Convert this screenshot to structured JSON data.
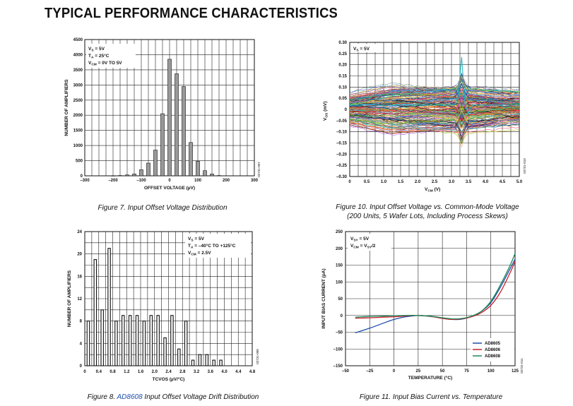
{
  "header": {
    "title": "TYPICAL PERFORMANCE CHARACTERISTICS"
  },
  "captions": {
    "fig7": "Figure 7. Input Offset Voltage Distribution",
    "fig10_line1": "Figure 10. Input Offset Voltage vs. Common-Mode Voltage",
    "fig10_line2": "(200 Units, 5 Wafer Lots, Including Process Skews)",
    "fig8_prefix": "Figure 8. ",
    "fig8_link": "AD8608",
    "fig8_suffix": " Input Offset Voltage Drift Distribution",
    "fig11": "Figure 11. Input Bias Current vs. Temperature"
  },
  "chart_data": [
    {
      "id": "fig7",
      "type": "bar",
      "xlabel": "OFFSET VOLTAGE (µV)",
      "ylabel": "NUMBER OF AMPLIFIERS",
      "xlim": [
        -300,
        300
      ],
      "ylim": [
        0,
        4500
      ],
      "xticks": [
        -300,
        -200,
        -100,
        0,
        100,
        200,
        300
      ],
      "yticks": [
        0,
        500,
        1000,
        1500,
        2000,
        2500,
        3000,
        3500,
        4000,
        4500
      ],
      "grid": true,
      "annotations": [
        [
          "V",
          "S",
          " = 5V"
        ],
        [
          "T",
          "A",
          " = 25°C"
        ],
        [
          "V",
          "CM",
          " = 0V TO 5V"
        ]
      ],
      "code": "02731-007",
      "x": [
        -200,
        -175,
        -150,
        -125,
        -100,
        -75,
        -50,
        -25,
        0,
        25,
        50,
        75,
        100,
        125,
        150,
        175
      ],
      "values": [
        5,
        10,
        30,
        60,
        200,
        420,
        850,
        2050,
        3850,
        3370,
        2950,
        1100,
        480,
        170,
        60,
        10
      ]
    },
    {
      "id": "fig10",
      "type": "line",
      "xlabel": "VCM (V)",
      "xlabel_parts": [
        "V",
        "CM",
        " (V)"
      ],
      "ylabel": "VOS (mV)",
      "ylabel_parts": [
        "V",
        "OS",
        " (mV)"
      ],
      "xlim": [
        0,
        5
      ],
      "ylim": [
        -0.3,
        0.3
      ],
      "xticks": [
        "0",
        "0.5",
        "1.0",
        "1.5",
        "2.0",
        "2.5",
        "3.0",
        "3.5",
        "4.0",
        "4.5",
        "5.0"
      ],
      "yticks": [
        "0.30",
        "0.25",
        "0.20",
        "0.15",
        "0.10",
        "0.05",
        "0",
        "–0.05",
        "–0.10",
        "–0.15",
        "–0.20",
        "–0.25",
        "–0.30"
      ],
      "grid": true,
      "annotations": [
        [
          "V",
          "S",
          " = 5V"
        ]
      ],
      "code": "02731-010",
      "series_count": 200,
      "note": "200 traces; offset mostly within ±0.15 mV, crossing point near VCM ≈ 3.3 V with spikes to about +0.24 mV"
    },
    {
      "id": "fig8",
      "type": "bar",
      "xlabel": "TCVOS (µV/°C)",
      "ylabel": "NUMBER OF AMPLIFIERS",
      "xlim": [
        0,
        4.8
      ],
      "ylim": [
        0,
        24
      ],
      "xticks": [
        "0",
        "0.4",
        "0.8",
        "1.2",
        "1.6",
        "2.0",
        "2.4",
        "2.8",
        "3.2",
        "3.6",
        "4.0",
        "4.4",
        "4.8"
      ],
      "yticks": [
        0,
        4,
        8,
        12,
        16,
        20,
        24
      ],
      "grid": true,
      "annotations": [
        [
          "V",
          "S",
          " = 5V"
        ],
        [
          "T",
          "A",
          " = –40°C TO +125°C"
        ],
        [
          "V",
          "CM",
          " = 2.5V"
        ]
      ],
      "code": "02731-008",
      "x": [
        0.1,
        0.3,
        0.5,
        0.7,
        0.9,
        1.1,
        1.3,
        1.5,
        1.7,
        1.9,
        2.1,
        2.3,
        2.5,
        2.7,
        2.9,
        3.1,
        3.3,
        3.5,
        3.7,
        3.9
      ],
      "values": [
        8,
        19,
        10,
        21,
        8,
        9,
        9,
        9,
        8,
        9,
        9,
        5,
        9,
        3,
        8,
        1,
        2,
        2,
        1,
        1
      ]
    },
    {
      "id": "fig11",
      "type": "line",
      "xlabel": "TEMPERATURE (°C)",
      "ylabel": "INPUT BIAS CURRENT (pA)",
      "xlim": [
        -50,
        125
      ],
      "ylim": [
        -150,
        250
      ],
      "xticks": [
        -50,
        -25,
        0,
        25,
        50,
        75,
        100,
        125
      ],
      "yticks": [
        -150,
        -100,
        -50,
        0,
        50,
        100,
        150,
        200,
        250
      ],
      "grid": true,
      "legend": "bottom-right",
      "annotations": [
        [
          "V",
          "SY",
          " = 5V"
        ],
        [
          "V",
          "CM",
          " = V",
          "SY",
          "/2"
        ]
      ],
      "code": "02731-011",
      "series": [
        {
          "name": "AD8605",
          "color": "#1f4ea8",
          "x": [
            -40,
            -25,
            -10,
            0,
            10,
            25,
            40,
            50,
            60,
            70,
            80,
            90,
            100,
            110,
            120,
            125
          ],
          "values": [
            -52,
            -38,
            -22,
            -12,
            -5,
            0,
            -3,
            -8,
            -12,
            -11,
            -3,
            12,
            38,
            85,
            140,
            168
          ]
        },
        {
          "name": "AD8606",
          "color": "#c8202a",
          "x": [
            -40,
            -25,
            -10,
            0,
            10,
            25,
            40,
            50,
            60,
            70,
            80,
            90,
            100,
            110,
            120,
            125
          ],
          "values": [
            -8,
            -7,
            -5,
            -4,
            -2,
            0,
            -4,
            -9,
            -12,
            -10,
            -4,
            8,
            30,
            70,
            128,
            162
          ]
        },
        {
          "name": "AD8608",
          "color": "#1a8a5a",
          "x": [
            -40,
            -25,
            -10,
            0,
            10,
            25,
            40,
            50,
            60,
            70,
            80,
            90,
            100,
            110,
            120,
            125
          ],
          "values": [
            -5,
            -3,
            -2,
            -1,
            0,
            0,
            -3,
            -7,
            -10,
            -9,
            -2,
            12,
            42,
            92,
            150,
            185
          ]
        }
      ]
    }
  ]
}
